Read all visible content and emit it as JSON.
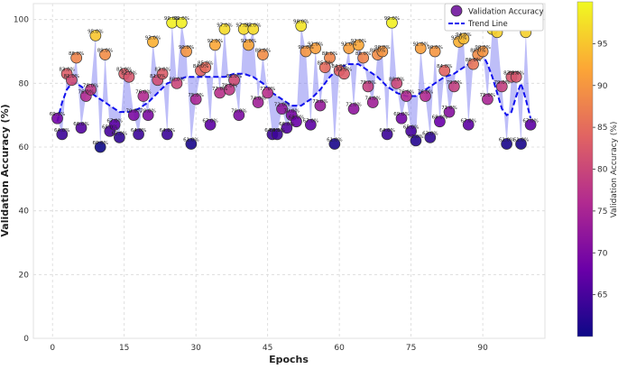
{
  "chart_data": {
    "type": "scatter",
    "xlabel": "Epochs",
    "ylabel": "Validation Accuracy (%)",
    "xlim": [
      -4,
      103
    ],
    "ylim": [
      0,
      105
    ],
    "xticks": [
      0,
      15,
      30,
      45,
      60,
      75,
      90
    ],
    "yticks": [
      0,
      20,
      40,
      60,
      80,
      100
    ],
    "grid": true,
    "legend": {
      "position": "top-right",
      "entries": [
        {
          "label": "Validation Accuracy",
          "marker": "circle"
        },
        {
          "label": "Trend Line",
          "marker": "dashed-line"
        }
      ]
    },
    "colorbar": {
      "label": "Validation Accuracy (%)",
      "range": [
        60,
        100
      ],
      "ticks": [
        65,
        70,
        75,
        80,
        85,
        90,
        95
      ],
      "colormap": "plasma"
    },
    "series": [
      {
        "name": "Validation Accuracy",
        "x": [
          1,
          2,
          3,
          4,
          5,
          6,
          7,
          8,
          9,
          10,
          11,
          12,
          13,
          14,
          15,
          16,
          17,
          18,
          19,
          20,
          21,
          22,
          23,
          24,
          25,
          26,
          27,
          28,
          29,
          30,
          31,
          32,
          33,
          34,
          35,
          36,
          37,
          38,
          39,
          40,
          41,
          42,
          43,
          44,
          45,
          46,
          47,
          48,
          49,
          50,
          51,
          52,
          53,
          54,
          55,
          56,
          57,
          58,
          59,
          60,
          61,
          62,
          63,
          64,
          65,
          66,
          67,
          68,
          69,
          70,
          71,
          72,
          73,
          74,
          75,
          76,
          77,
          78,
          79,
          80,
          81,
          82,
          83,
          84,
          85,
          86,
          87,
          88,
          89,
          90,
          91,
          92,
          93,
          94,
          95,
          96,
          97,
          98,
          99,
          100
        ],
        "y": [
          69,
          64,
          83,
          81,
          88,
          66,
          76,
          78,
          95,
          60,
          89,
          65,
          67,
          63,
          83,
          82,
          70,
          64,
          76,
          70,
          93,
          81,
          83,
          64,
          99,
          80,
          99,
          90,
          61,
          75,
          84,
          85,
          67,
          92,
          77,
          97,
          78,
          81,
          70,
          97,
          92,
          97,
          74,
          89,
          77,
          64,
          64,
          72,
          66,
          70,
          68,
          98,
          90,
          67,
          91,
          73,
          85,
          88,
          61,
          84,
          83,
          91,
          72,
          92,
          88,
          79,
          74,
          89,
          90,
          64,
          99,
          80,
          69,
          76,
          65,
          62,
          91,
          76,
          63,
          90,
          68,
          84,
          71,
          79,
          93,
          94,
          67,
          86,
          89,
          90,
          75,
          97,
          96,
          79,
          61,
          82,
          82,
          61,
          96,
          67
        ],
        "labels": [
          "69.0%",
          "64.0%",
          "83.0%",
          "81.0%",
          "88.0%",
          "66.0%",
          "76.0%",
          "78.0%",
          "95.0%",
          "60.0%",
          "89.0%",
          "65.0%",
          "67.0%",
          "63.0%",
          "83.0%",
          "82.0%",
          "70.0%",
          "64.0%",
          "76.0%",
          "70.0%",
          "93.0%",
          "81.0%",
          "83.0%",
          "64.0%",
          "99.0%",
          "80.0%",
          "99.0%",
          "90.0%",
          "61.0%",
          "75.0%",
          "84.0%",
          "85.0%",
          "67.0%",
          "92.0%",
          "77.0%",
          "97.0%",
          "78.0%",
          "81.0%",
          "70.0%",
          "97.0%",
          "92.0%",
          "97.0%",
          "74.0%",
          "89.0%",
          "77.0%",
          "64.0%",
          "64.0%",
          "72.0%",
          "66.0%",
          "70.0%",
          "68.0%",
          "98.0%",
          "90.0%",
          "67.0%",
          "91.0%",
          "73.0%",
          "85.0%",
          "88.0%",
          "61.0%",
          "84.0%",
          "83.0%",
          "91.0%",
          "72.0%",
          "92.0%",
          "88.0%",
          "79.0%",
          "74.0%",
          "89.0%",
          "90.0%",
          "64.0%",
          "99.0%",
          "80.0%",
          "69.0%",
          "76.0%",
          "65.0%",
          "62.0%",
          "91.0%",
          "76.0%",
          "63.0%",
          "90.0%",
          "68.0%",
          "84.0%",
          "71.0%",
          "79.0%",
          "93.0%",
          "94.0%",
          "67.0%",
          "86.0%",
          "89.0%",
          "90.0%",
          "75.0%",
          "97.0%",
          "96.0%",
          "79.0%",
          "61.0%",
          "82.0%",
          "82.0%",
          "61.0%",
          "96.0%",
          "67.0%"
        ]
      },
      {
        "name": "Trend Line",
        "x": [
          1,
          2,
          3,
          4,
          5,
          6,
          8,
          10,
          12,
          14,
          16,
          18,
          20,
          22,
          24,
          26,
          28,
          30,
          32,
          34,
          36,
          38,
          40,
          42,
          44,
          46,
          48,
          50,
          52,
          54,
          56,
          58,
          60,
          62,
          64,
          66,
          68,
          70,
          72,
          74,
          76,
          78,
          80,
          82,
          84,
          86,
          88,
          90,
          91,
          92,
          93,
          94,
          95,
          96,
          97,
          98,
          99,
          100
        ],
        "y": [
          68,
          74,
          78,
          80,
          80,
          79,
          77,
          75,
          73,
          71,
          71,
          72,
          74,
          77,
          80,
          81,
          82,
          82,
          82,
          82,
          82,
          83,
          83,
          82,
          80,
          77,
          75,
          73,
          73,
          75,
          78,
          82,
          85,
          86,
          86,
          84,
          82,
          79,
          77,
          76,
          76,
          78,
          80,
          82,
          83,
          85,
          87,
          89,
          86,
          82,
          77,
          72,
          70,
          71,
          76,
          80,
          75,
          69
        ]
      }
    ]
  }
}
